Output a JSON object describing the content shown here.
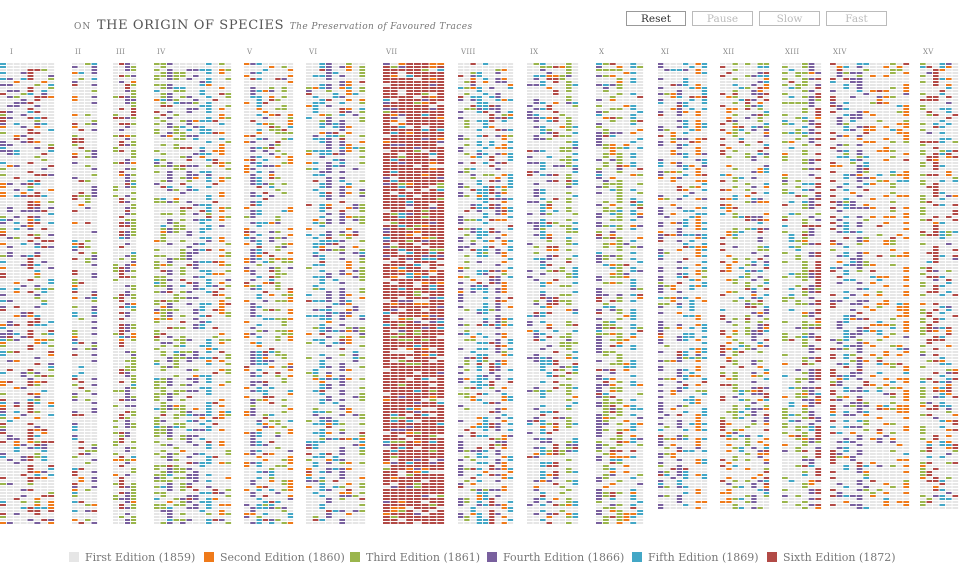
{
  "header": {
    "on": "ON",
    "title": "THE ORIGIN OF SPECIES",
    "subtitle": "The Preservation of Favoured Traces"
  },
  "controls": [
    {
      "label": "Reset",
      "active": true
    },
    {
      "label": "Pause",
      "active": false
    },
    {
      "label": "Slow",
      "active": false
    },
    {
      "label": "Fast",
      "active": false
    }
  ],
  "chapters": [
    "I",
    "II",
    "III",
    "IV",
    "V",
    "VI",
    "VII",
    "VIII",
    "IX",
    "X",
    "XI",
    "XII",
    "XIII",
    "XIV",
    "XV"
  ],
  "editions": [
    {
      "label": "First Edition (1859)",
      "color": "#e6e6e6"
    },
    {
      "label": "Second Edition (1860)",
      "color": "#ef7a1a"
    },
    {
      "label": "Third Edition (1861)",
      "color": "#9ab54c"
    },
    {
      "label": "Fourth Edition (1866)",
      "color": "#79609e"
    },
    {
      "label": "Fifth Edition (1869)",
      "color": "#43a7c6"
    },
    {
      "label": "Sixth Edition (1872)",
      "color": "#b24a46"
    }
  ]
}
